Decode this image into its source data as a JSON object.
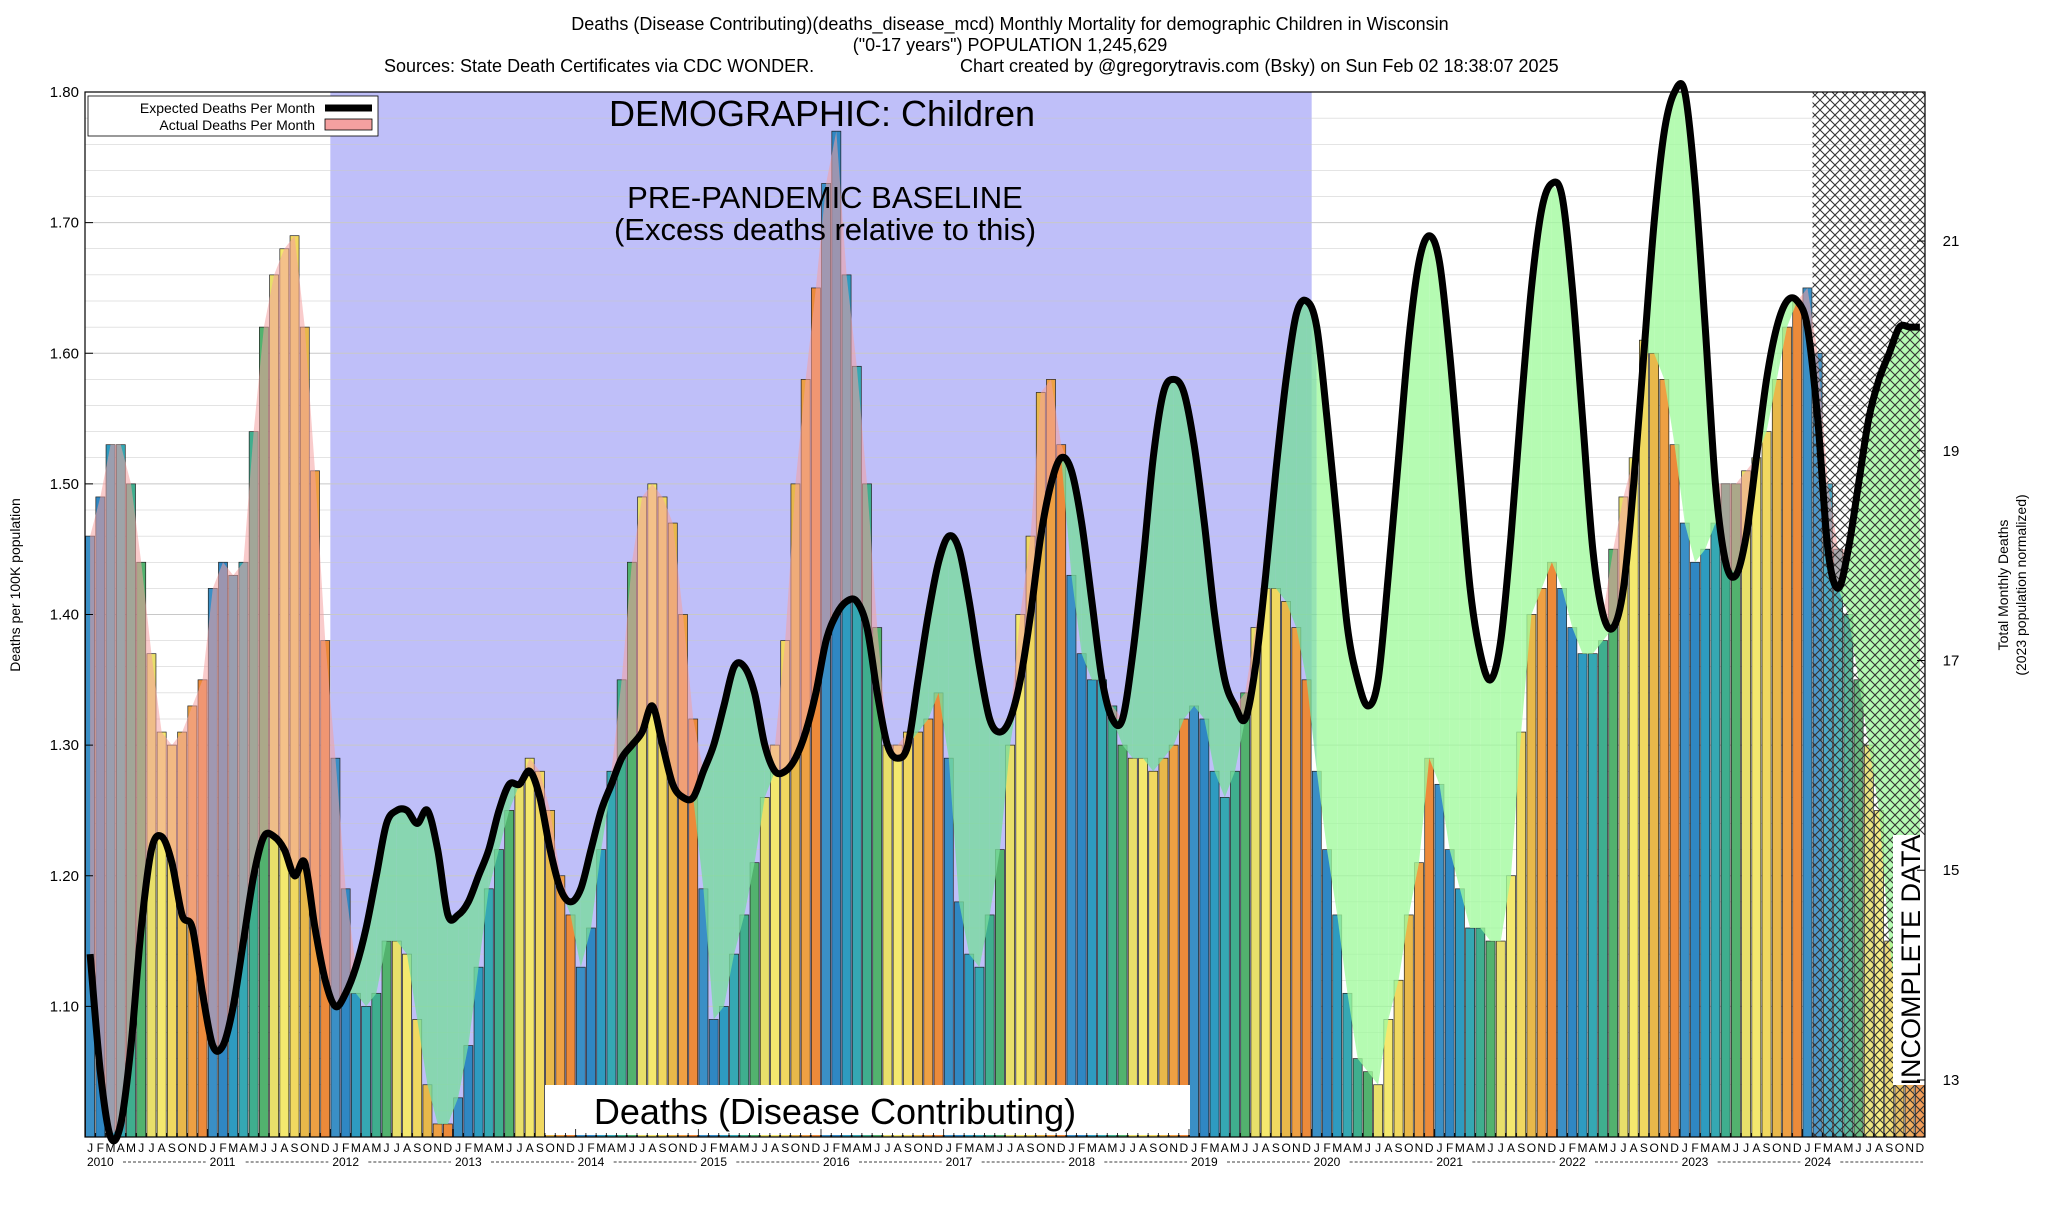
{
  "header": {
    "line1": "Deaths (Disease Contributing)(deaths_disease_mcd) Monthly Mortality for demographic Children in Wisconsin",
    "line2": "(\"0-17 years\") POPULATION 1,245,629",
    "line3a": "Sources: State Death Certificates via CDC WONDER.",
    "line3b": "Chart created by @gregorytravis.com (Bsky) on Sun Feb 02 18:38:07 2025"
  },
  "annotations": {
    "demographic": "DEMOGRAPHIC: Children",
    "baseline1": "PRE-PANDEMIC BASELINE",
    "baseline2": "(Excess deaths relative to this)",
    "metric": "Deaths (Disease Contributing)",
    "incomplete": "INCOMPLETE DATA"
  },
  "colors": {
    "baseline_band": "#bfbff9",
    "expected_line": "#000000",
    "excess_fill": "#a0fa9c",
    "baseline_excess_fill": "#78dc9c",
    "actual_fill": "#f4a0a0",
    "grid": "#c8c8c8"
  },
  "chart_data": {
    "type": "bar",
    "ylabel": "Deaths per 100K population",
    "y2label_1": "Total Monthly Deaths",
    "y2label_2": "(2023 population normalized)",
    "ylim": [
      1.0,
      1.8
    ],
    "y_ticks": [
      "1.10",
      "1.20",
      "1.30",
      "1.40",
      "1.50",
      "1.60",
      "1.70",
      "1.80"
    ],
    "y2_ticks": [
      "13",
      "15",
      "17",
      "19",
      "21"
    ],
    "legend_position": "top-left",
    "legend": [
      "Expected Deaths Per Month",
      "Actual Deaths Per Month"
    ],
    "month_letters": [
      "J",
      "F",
      "M",
      "A",
      "M",
      "J",
      "J",
      "A",
      "S",
      "O",
      "N",
      "D"
    ],
    "years": [
      "2010",
      "2011",
      "2012",
      "2013",
      "2014",
      "2015",
      "2016",
      "2017",
      "2018",
      "2019",
      "2020",
      "2021",
      "2022",
      "2023",
      "2024"
    ],
    "baseline_period": [
      "2012-01",
      "2019-12"
    ],
    "incomplete_from": "2024-02",
    "actual": [
      1.46,
      1.49,
      1.53,
      1.53,
      1.5,
      1.44,
      1.37,
      1.31,
      1.3,
      1.31,
      1.33,
      1.35,
      1.42,
      1.44,
      1.43,
      1.44,
      1.54,
      1.62,
      1.66,
      1.68,
      1.69,
      1.62,
      1.51,
      1.38,
      1.29,
      1.19,
      1.11,
      1.1,
      1.11,
      1.15,
      1.15,
      1.14,
      1.09,
      1.04,
      1.01,
      1.01,
      1.03,
      1.07,
      1.13,
      1.19,
      1.22,
      1.25,
      1.27,
      1.29,
      1.28,
      1.25,
      1.2,
      1.17,
      1.13,
      1.16,
      1.22,
      1.28,
      1.35,
      1.44,
      1.49,
      1.5,
      1.49,
      1.47,
      1.4,
      1.32,
      1.19,
      1.09,
      1.1,
      1.14,
      1.17,
      1.21,
      1.26,
      1.3,
      1.38,
      1.5,
      1.58,
      1.65,
      1.73,
      1.77,
      1.66,
      1.59,
      1.5,
      1.39,
      1.3,
      1.3,
      1.31,
      1.31,
      1.32,
      1.34,
      1.29,
      1.18,
      1.14,
      1.13,
      1.17,
      1.22,
      1.3,
      1.4,
      1.46,
      1.57,
      1.58,
      1.53,
      1.43,
      1.37,
      1.35,
      1.35,
      1.33,
      1.3,
      1.29,
      1.29,
      1.28,
      1.29,
      1.3,
      1.32,
      1.33,
      1.32,
      1.28,
      1.26,
      1.28,
      1.34,
      1.39,
      1.42,
      1.42,
      1.41,
      1.39,
      1.35,
      1.28,
      1.22,
      1.17,
      1.11,
      1.06,
      1.05,
      1.04,
      1.09,
      1.12,
      1.17,
      1.21,
      1.29,
      1.27,
      1.22,
      1.19,
      1.16,
      1.16,
      1.15,
      1.15,
      1.2,
      1.31,
      1.4,
      1.42,
      1.44,
      1.42,
      1.39,
      1.37,
      1.37,
      1.38,
      1.45,
      1.49,
      1.52,
      1.61,
      1.6,
      1.58,
      1.53,
      1.47,
      1.44,
      1.45,
      1.47,
      1.5,
      1.5,
      1.51,
      1.52,
      1.54,
      1.58,
      1.62,
      1.64,
      1.65,
      1.6,
      1.5,
      1.45,
      1.4,
      1.35,
      1.3,
      1.25,
      1.15,
      1.08,
      1.05,
      1.04
    ],
    "expected": [
      1.14,
      1.05,
      1.0,
      1.01,
      1.07,
      1.16,
      1.22,
      1.23,
      1.21,
      1.17,
      1.16,
      1.11,
      1.07,
      1.07,
      1.1,
      1.15,
      1.2,
      1.23,
      1.23,
      1.22,
      1.2,
      1.21,
      1.16,
      1.12,
      1.1,
      1.11,
      1.13,
      1.16,
      1.2,
      1.24,
      1.25,
      1.25,
      1.24,
      1.25,
      1.22,
      1.17,
      1.17,
      1.18,
      1.2,
      1.22,
      1.25,
      1.27,
      1.27,
      1.28,
      1.26,
      1.22,
      1.19,
      1.18,
      1.19,
      1.22,
      1.25,
      1.27,
      1.29,
      1.3,
      1.31,
      1.33,
      1.3,
      1.27,
      1.26,
      1.26,
      1.28,
      1.3,
      1.33,
      1.36,
      1.36,
      1.34,
      1.3,
      1.28,
      1.28,
      1.29,
      1.31,
      1.34,
      1.38,
      1.4,
      1.41,
      1.41,
      1.39,
      1.34,
      1.3,
      1.29,
      1.3,
      1.35,
      1.4,
      1.44,
      1.46,
      1.45,
      1.41,
      1.36,
      1.32,
      1.31,
      1.32,
      1.35,
      1.4,
      1.46,
      1.5,
      1.52,
      1.51,
      1.47,
      1.41,
      1.35,
      1.32,
      1.32,
      1.37,
      1.44,
      1.52,
      1.57,
      1.58,
      1.57,
      1.53,
      1.47,
      1.4,
      1.35,
      1.33,
      1.32,
      1.36,
      1.43,
      1.51,
      1.58,
      1.63,
      1.64,
      1.62,
      1.55,
      1.47,
      1.39,
      1.35,
      1.33,
      1.35,
      1.43,
      1.52,
      1.61,
      1.67,
      1.69,
      1.67,
      1.6,
      1.51,
      1.42,
      1.37,
      1.35,
      1.38,
      1.46,
      1.56,
      1.65,
      1.71,
      1.73,
      1.72,
      1.65,
      1.55,
      1.45,
      1.4,
      1.39,
      1.42,
      1.5,
      1.6,
      1.7,
      1.77,
      1.8,
      1.8,
      1.73,
      1.62,
      1.5,
      1.44,
      1.43,
      1.46,
      1.52,
      1.58,
      1.62,
      1.64,
      1.64,
      1.62,
      1.55,
      1.45,
      1.42,
      1.45,
      1.5,
      1.55,
      1.58,
      1.6,
      1.62,
      1.62,
      1.62
    ]
  }
}
